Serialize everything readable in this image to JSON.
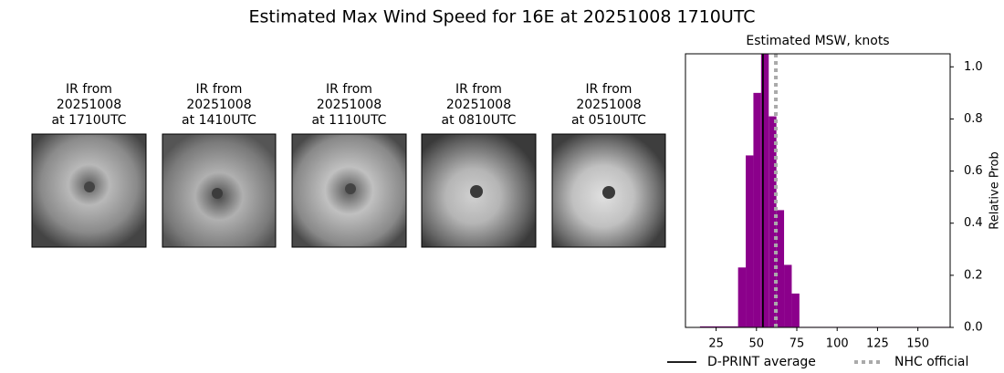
{
  "chart_data": {
    "type": "histogram",
    "suptitle": "Estimated Max Wind Speed for 16E at 20251008 1710UTC",
    "panels": [
      {
        "title": [
          "IR from",
          "20251008",
          "at 1710UTC"
        ]
      },
      {
        "title": [
          "IR from",
          "20251008",
          "at 1410UTC"
        ]
      },
      {
        "title": [
          "IR from",
          "20251008",
          "at 1110UTC"
        ]
      },
      {
        "title": [
          "IR from",
          "20251008",
          "at 0810UTC"
        ]
      },
      {
        "title": [
          "IR from",
          "20251008",
          "at 0510UTC"
        ]
      }
    ],
    "title": "Estimated MSW, knots",
    "ylabel": "Relative Prob",
    "bins": [
      15,
      38.6,
      43.35,
      48.1,
      52.85,
      57.6,
      62.35,
      67.1,
      71.85,
      76.6,
      170
    ],
    "values": [
      0.004,
      0.23,
      0.66,
      0.9,
      1.06,
      0.81,
      0.45,
      0.24,
      0.13,
      0.002
    ],
    "color": "#8b008b",
    "xlim": [
      6,
      170
    ],
    "ylim": [
      0,
      1.05
    ],
    "xticks": [
      25,
      50,
      75,
      100,
      125,
      150
    ],
    "yticks": [
      {
        "value": 0,
        "label": "0.0"
      },
      {
        "value": 0.2,
        "label": "0.2"
      },
      {
        "value": 0.4,
        "label": "0.4"
      },
      {
        "value": 0.6,
        "label": "0.6"
      },
      {
        "value": 0.8,
        "label": "0.8"
      },
      {
        "value": 1.0,
        "label": "1.0"
      }
    ],
    "lines": [
      {
        "name": "D-PRINT average",
        "value": 54,
        "color": "#000000",
        "style": "solid"
      },
      {
        "name": "NHC official",
        "value": 62,
        "color": "#aaaaaa",
        "style": "dotted"
      }
    ]
  }
}
